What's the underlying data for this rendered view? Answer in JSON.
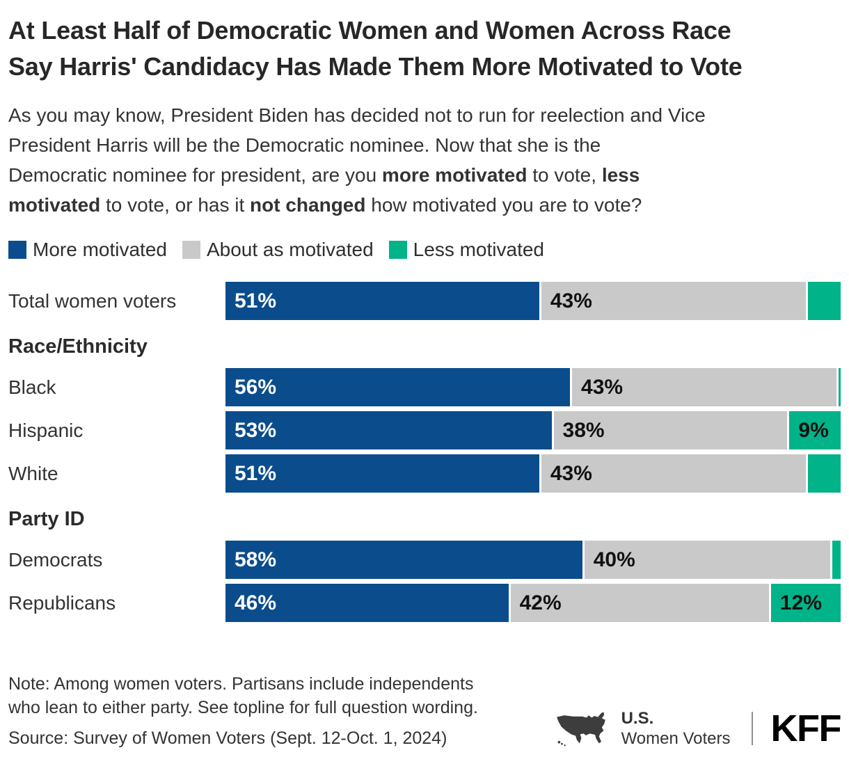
{
  "title_lines": [
    "At Least Half of Democratic Women and Women Across Race",
    "Say Harris' Candidacy Has Made Them More Motivated to Vote"
  ],
  "subtitle_lines": [
    [
      {
        "text": "As you may know, President Biden has decided not to run for reelection and Vice",
        "bold": false
      }
    ],
    [
      {
        "text": "President Harris will be the Democratic nominee. Now that she is the",
        "bold": false
      }
    ],
    [
      {
        "text": "Democratic nominee for president, are you ",
        "bold": false
      },
      {
        "text": "more motivated",
        "bold": true
      },
      {
        "text": " to vote, ",
        "bold": false
      },
      {
        "text": "less",
        "bold": true
      }
    ],
    [
      {
        "text": "motivated",
        "bold": true
      },
      {
        "text": " to vote, or has it ",
        "bold": false
      },
      {
        "text": "not changed",
        "bold": true
      },
      {
        "text": " how motivated you are to vote?",
        "bold": false
      }
    ]
  ],
  "legend": [
    {
      "label": "More motivated",
      "color": "#0b4d8c"
    },
    {
      "label": "About as motivated",
      "color": "#c9c9c9"
    },
    {
      "label": "Less motivated",
      "color": "#00b388"
    }
  ],
  "colors": {
    "more": "#0b4d8c",
    "about": "#c9c9c9",
    "less": "#00b388"
  },
  "chart_data": {
    "type": "bar",
    "orientation": "horizontal",
    "stacked": true,
    "xlim": [
      0,
      100
    ],
    "unit": "%",
    "grid": false,
    "legend_position": "top",
    "categories": [
      "Total women voters",
      "Black",
      "Hispanic",
      "White",
      "Democrats",
      "Republicans"
    ],
    "groups": [
      {
        "header": "Race/Ethnicity",
        "categories": [
          "Black",
          "Hispanic",
          "White"
        ]
      },
      {
        "header": "Party ID",
        "categories": [
          "Democrats",
          "Republicans"
        ]
      }
    ],
    "series": [
      {
        "name": "More motivated",
        "color": "#0b4d8c",
        "values": [
          51,
          56,
          53,
          51,
          58,
          46
        ],
        "labels": [
          "51%",
          "56%",
          "53%",
          "51%",
          "58%",
          "46%"
        ]
      },
      {
        "name": "About as motivated",
        "color": "#c9c9c9",
        "values": [
          43,
          43,
          38,
          43,
          40,
          42
        ],
        "labels": [
          "43%",
          "43%",
          "38%",
          "43%",
          "40%",
          "42%"
        ]
      },
      {
        "name": "Less motivated",
        "color": "#00b388",
        "values": [
          6,
          1,
          9,
          6,
          2,
          12
        ],
        "labels": [
          "",
          "",
          "9%",
          "",
          "",
          "12%"
        ]
      }
    ]
  },
  "rows": [
    {
      "kind": "bar",
      "label": "Total women voters",
      "more": 51,
      "about": 43,
      "more_label": "51%",
      "about_label": "43%",
      "less_label": ""
    },
    {
      "kind": "section",
      "label": "Race/Ethnicity"
    },
    {
      "kind": "bar",
      "label": "Black",
      "more": 56,
      "about": 43,
      "more_label": "56%",
      "about_label": "43%",
      "less_label": ""
    },
    {
      "kind": "bar",
      "label": "Hispanic",
      "more": 53,
      "about": 38,
      "more_label": "53%",
      "about_label": "38%",
      "less_label": "9%"
    },
    {
      "kind": "bar",
      "label": "White",
      "more": 51,
      "about": 43,
      "more_label": "51%",
      "about_label": "43%",
      "less_label": ""
    },
    {
      "kind": "section",
      "label": "Party ID"
    },
    {
      "kind": "bar",
      "label": "Democrats",
      "more": 58,
      "about": 40,
      "more_label": "58%",
      "about_label": "40%",
      "less_label": ""
    },
    {
      "kind": "bar",
      "label": "Republicans",
      "more": 46,
      "about": 42,
      "more_label": "46%",
      "about_label": "42%",
      "less_label": "12%"
    }
  ],
  "note": {
    "lines": [
      "Note: Among women voters. Partisans include independents",
      "who lean to either party. See topline for full question wording."
    ]
  },
  "source": "Source: Survey of Women Voters (Sept. 12-Oct. 1, 2024)",
  "branding": {
    "region": "U.S.",
    "audience": "Women Voters",
    "logo": "KFF"
  }
}
